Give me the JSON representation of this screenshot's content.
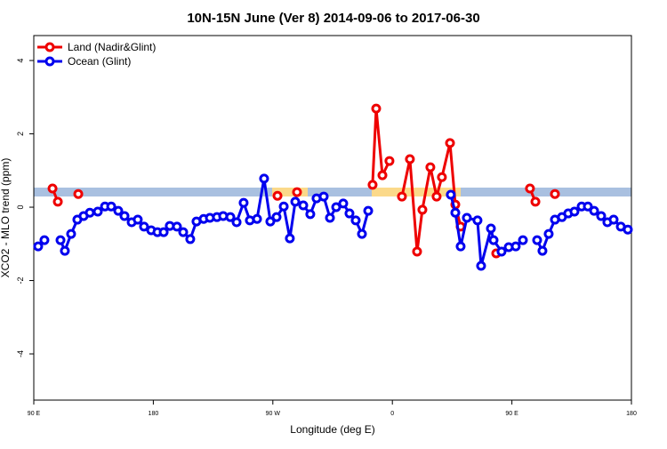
{
  "chart_data": {
    "type": "line",
    "title": "10N-15N June (Ver 8)   2014-09-06 to 2017-06-30",
    "x_label": "Longitude (deg E)",
    "y_label": "XCO2 - MLO trend (ppm)",
    "xlim": [
      90,
      540
    ],
    "ylim": [
      -5.26,
      4.68
    ],
    "xticks": [
      {
        "value": 90,
        "label": "90 E"
      },
      {
        "value": 180,
        "label": "180"
      },
      {
        "value": 270,
        "label": "90 W"
      },
      {
        "value": 360,
        "label": "0"
      },
      {
        "value": 450,
        "label": "90 E"
      },
      {
        "value": 540,
        "label": "180"
      }
    ],
    "yticks": [
      -4,
      -2,
      0,
      2,
      4
    ],
    "legend": "top-left",
    "series": [
      {
        "name": "Land (Nadir&Glint)",
        "color": "#ee0000",
        "x": [
          104.1,
          108.1,
          null,
          123.5,
          null,
          273.5,
          null,
          288.2,
          null,
          345.1,
          347.8,
          352.5,
          357.8,
          null,
          367.2,
          373.2,
          378.6,
          382.6,
          388.6,
          393.3,
          397.3,
          403.4,
          407.4,
          411.4,
          null,
          438.2,
          null,
          463.6,
          467.7,
          null,
          482.4
        ],
        "values": [
          0.51,
          0.15,
          null,
          0.36,
          null,
          0.31,
          null,
          0.41,
          null,
          0.61,
          2.69,
          0.87,
          1.26,
          null,
          0.29,
          1.31,
          -1.21,
          -0.07,
          1.09,
          0.29,
          0.82,
          1.75,
          0.07,
          -0.53,
          null,
          -1.26,
          null,
          0.51,
          0.15,
          null,
          0.36
        ]
      },
      {
        "name": "Ocean (Glint)",
        "color": "#0000ee",
        "x": [
          93.3,
          98.0,
          null,
          110.1,
          113.4,
          118.1,
          122.8,
          127.5,
          132.2,
          138.2,
          143.6,
          148.3,
          153.6,
          158.3,
          163.7,
          168.3,
          173.0,
          178.4,
          183.1,
          187.8,
          192.4,
          197.8,
          202.5,
          207.8,
          212.5,
          217.9,
          222.6,
          227.9,
          232.6,
          238.0,
          242.7,
          248.0,
          252.7,
          258.1,
          263.4,
          268.1,
          272.8,
          278.2,
          282.8,
          286.9,
          292.9,
          298.2,
          302.9,
          308.3,
          313.0,
          317.7,
          323.0,
          327.7,
          332.4,
          337.1,
          341.8,
          null,
          404.0,
          407.4,
          411.4,
          416.1,
          424.1,
          426.8,
          434.2,
          436.2,
          442.2,
          447.6,
          452.9,
          458.3,
          null,
          469.0,
          473.0,
          477.7,
          482.4,
          487.7,
          492.4,
          497.1,
          502.5,
          507.2,
          511.9,
          517.2,
          521.9,
          526.6,
          532.0,
          537.3
        ],
        "values": [
          -1.07,
          -0.9,
          null,
          -0.9,
          -1.19,
          -0.73,
          -0.34,
          -0.24,
          -0.15,
          -0.12,
          0.02,
          0.02,
          -0.1,
          -0.24,
          -0.41,
          -0.34,
          -0.53,
          -0.63,
          -0.68,
          -0.68,
          -0.51,
          -0.53,
          -0.68,
          -0.87,
          -0.39,
          -0.32,
          -0.29,
          -0.27,
          -0.24,
          -0.27,
          -0.41,
          0.12,
          -0.36,
          -0.32,
          0.78,
          -0.39,
          -0.27,
          0.02,
          -0.85,
          0.15,
          0.05,
          -0.19,
          0.24,
          0.29,
          -0.29,
          0.0,
          0.1,
          -0.17,
          -0.36,
          -0.73,
          -0.1,
          null,
          0.34,
          -0.15,
          -1.07,
          -0.29,
          -0.36,
          -1.6,
          -0.58,
          -0.9,
          -1.21,
          -1.09,
          -1.07,
          -0.9,
          null,
          -0.9,
          -1.19,
          -0.73,
          -0.34,
          -0.27,
          -0.17,
          -0.12,
          0.02,
          0.02,
          -0.1,
          -0.24,
          -0.41,
          -0.34,
          -0.53,
          -0.61
        ]
      }
    ]
  }
}
